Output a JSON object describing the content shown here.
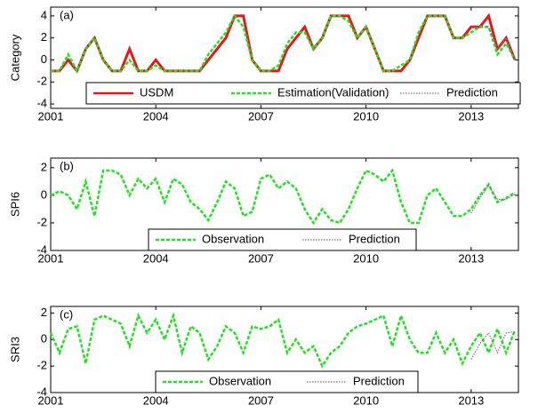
{
  "chart_data": [
    {
      "type": "line",
      "annotation": "(a)",
      "ylabel": "Category",
      "xlim": [
        2001,
        2014.35
      ],
      "xticks": [
        2001,
        2004,
        2007,
        2010,
        2013
      ],
      "ylim": [
        -4.4,
        4.8
      ],
      "yticks": [
        -4,
        -2,
        0,
        2,
        4
      ],
      "x": [
        2001,
        2001.25,
        2001.5,
        2001.75,
        2002,
        2002.25,
        2002.5,
        2002.75,
        2003,
        2003.25,
        2003.5,
        2003.75,
        2004,
        2004.25,
        2004.5,
        2004.75,
        2005,
        2005.25,
        2005.5,
        2005.75,
        2006,
        2006.25,
        2006.5,
        2006.75,
        2007,
        2007.25,
        2007.5,
        2007.75,
        2008,
        2008.25,
        2008.5,
        2008.75,
        2009,
        2009.25,
        2009.5,
        2009.75,
        2010,
        2010.25,
        2010.5,
        2010.75,
        2011,
        2011.25,
        2011.5,
        2011.75,
        2012,
        2012.25,
        2012.5,
        2012.75,
        2013,
        2013.25,
        2013.5,
        2013.75,
        2014,
        2014.25
      ],
      "series": [
        {
          "name": "USDM",
          "color": "#e8161b",
          "linestyle": "solid",
          "values": [
            -1,
            -1,
            0,
            -1,
            1,
            2,
            0,
            -1,
            -1,
            1,
            -1,
            -1,
            0,
            -1,
            -1,
            -1,
            -1,
            -1,
            0,
            1,
            2,
            4,
            4,
            0,
            -1,
            -1,
            -1,
            1,
            2,
            3,
            1,
            2,
            4,
            4,
            4,
            2,
            3,
            1,
            -1,
            -1,
            -1,
            0,
            2,
            4,
            4,
            4,
            2,
            2,
            3,
            3,
            4,
            1,
            2,
            0
          ]
        },
        {
          "name": "Estimation(Validation)",
          "color": "#22e022",
          "linestyle": "dashed",
          "values": [
            -1,
            -1,
            0.5,
            -1,
            1,
            2,
            0,
            -1,
            -1,
            0,
            -1,
            -1,
            -0.5,
            -1,
            -1,
            -1,
            -1,
            -1,
            0.5,
            1.5,
            2.5,
            4,
            3,
            0,
            -1,
            -1,
            -0.5,
            1.5,
            2.5,
            2.5,
            1,
            2,
            4,
            4,
            3.5,
            2,
            3,
            1,
            -1,
            -1,
            -0.5,
            0,
            2.5,
            4,
            4,
            4,
            2,
            2,
            2.5,
            3,
            3,
            0.5,
            1.5,
            0
          ]
        },
        {
          "name": "Prediction",
          "color": "#777777",
          "linestyle": "dotted",
          "x": [
            2013,
            2013.25,
            2013.5,
            2013.75,
            2014,
            2014.25
          ],
          "values": [
            3,
            3,
            3,
            1,
            2,
            0
          ]
        }
      ]
    },
    {
      "type": "line",
      "annotation": "(b)",
      "ylabel": "SPI6",
      "xlim": [
        2001,
        2014.35
      ],
      "xticks": [
        2001,
        2004,
        2007,
        2010,
        2013
      ],
      "ylim": [
        -4,
        2.7
      ],
      "yticks": [
        -4,
        -2,
        0,
        2
      ],
      "x": [
        2001,
        2001.25,
        2001.5,
        2001.75,
        2002,
        2002.25,
        2002.5,
        2002.75,
        2003,
        2003.25,
        2003.5,
        2003.75,
        2004,
        2004.25,
        2004.5,
        2004.75,
        2005,
        2005.25,
        2005.5,
        2005.75,
        2006,
        2006.25,
        2006.5,
        2006.75,
        2007,
        2007.25,
        2007.5,
        2007.75,
        2008,
        2008.25,
        2008.5,
        2008.75,
        2009,
        2009.25,
        2009.5,
        2009.75,
        2010,
        2010.25,
        2010.5,
        2010.75,
        2011,
        2011.25,
        2011.5,
        2011.75,
        2012,
        2012.25,
        2012.5,
        2012.75,
        2013,
        2013.25,
        2013.5,
        2013.75,
        2014,
        2014.25
      ],
      "series": [
        {
          "name": "Observation",
          "color": "#22e022",
          "linestyle": "dashed",
          "values": [
            0,
            0.3,
            0,
            -1,
            1,
            -1.5,
            1.8,
            1.8,
            1.5,
            0,
            1.2,
            0.5,
            1.2,
            -0.5,
            1.2,
            0.8,
            -0.5,
            -1,
            -1.8,
            -0.5,
            1,
            0.5,
            -1.5,
            -1.2,
            1.2,
            1.5,
            0.5,
            1,
            0.5,
            -1,
            -2,
            -1,
            -1.8,
            -2,
            -1,
            0.5,
            1.8,
            1.5,
            1,
            1.8,
            -0.5,
            -2,
            -2,
            0,
            0.5,
            -0.5,
            -1.5,
            -1.5,
            -1,
            0,
            0.8,
            -0.5,
            -0.2,
            0.2
          ]
        },
        {
          "name": "Prediction",
          "color": "#777777",
          "linestyle": "dotted",
          "x": [
            2013,
            2013.25,
            2013.5,
            2013.75,
            2014,
            2014.25
          ],
          "values": [
            -1.3,
            -0.2,
            0.7,
            -0.3,
            -0.3,
            0.1
          ]
        }
      ]
    },
    {
      "type": "line",
      "annotation": "(c)",
      "ylabel": "SRI3",
      "xlim": [
        2001,
        2014.35
      ],
      "xticks": [
        2001,
        2004,
        2007,
        2010,
        2013
      ],
      "ylim": [
        -4,
        2.5
      ],
      "yticks": [
        -4,
        -2,
        0,
        2
      ],
      "x": [
        2001,
        2001.25,
        2001.5,
        2001.75,
        2002,
        2002.25,
        2002.5,
        2002.75,
        2003,
        2003.25,
        2003.5,
        2003.75,
        2004,
        2004.25,
        2004.5,
        2004.75,
        2005,
        2005.25,
        2005.5,
        2005.75,
        2006,
        2006.25,
        2006.5,
        2006.75,
        2007,
        2007.25,
        2007.5,
        2007.75,
        2008,
        2008.25,
        2008.5,
        2008.75,
        2009,
        2009.25,
        2009.5,
        2009.75,
        2010,
        2010.25,
        2010.5,
        2010.75,
        2011,
        2011.25,
        2011.5,
        2011.75,
        2012,
        2012.25,
        2012.5,
        2012.75,
        2013,
        2013.25,
        2013.5,
        2013.75,
        2014,
        2014.25
      ],
      "series": [
        {
          "name": "Observation",
          "color": "#22e022",
          "linestyle": "dashed",
          "values": [
            0.5,
            -1,
            0.8,
            1,
            -1.8,
            1.5,
            1.8,
            1.5,
            1.2,
            -0.5,
            1.8,
            0.5,
            1.5,
            0,
            1.8,
            -1,
            1,
            0.5,
            -1.5,
            -0.5,
            1,
            0.5,
            -1,
            1,
            0.8,
            1,
            1.5,
            -1,
            0,
            -1,
            -0.5,
            -2,
            -1,
            -0.5,
            0.5,
            1,
            1.2,
            1.5,
            1.8,
            -0.5,
            1.8,
            0,
            -1,
            -1,
            0.5,
            -1,
            0,
            -1.8,
            -0.5,
            0.5,
            -1,
            0.8,
            -1,
            0.7
          ]
        },
        {
          "name": "Prediction",
          "color": "#777777",
          "linestyle": "dotted",
          "x": [
            2013,
            2013.25,
            2013.5,
            2013.75,
            2014,
            2014.25
          ],
          "values": [
            -1.5,
            -0.3,
            0.5,
            -1,
            0.5,
            0.6
          ]
        }
      ]
    }
  ]
}
